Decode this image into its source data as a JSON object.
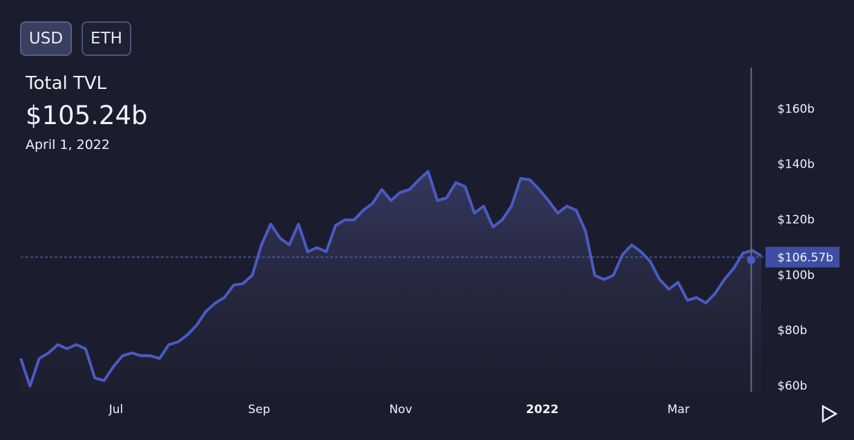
{
  "buttons": [
    "USD",
    "ETH"
  ],
  "header": {
    "title": "Total TVL",
    "value": "$105.24b",
    "date": "April 1, 2022"
  },
  "chart_data": {
    "type": "line",
    "color": "#4a5bc2",
    "values": [
      70,
      60,
      70,
      72,
      75,
      73.5,
      75,
      73.5,
      63,
      62,
      67,
      71,
      72,
      71,
      71,
      70,
      75,
      76,
      78.5,
      82,
      87,
      90,
      92,
      96.5,
      97,
      100,
      111,
      118.5,
      113.5,
      111,
      118.5,
      108.5,
      110,
      108.5,
      118,
      120,
      120,
      123.5,
      126,
      131,
      127,
      130,
      131,
      134.5,
      137.5,
      127,
      128,
      133.5,
      132,
      122.5,
      125,
      117.5,
      120,
      125,
      135,
      134.5,
      131,
      127,
      122.5,
      125,
      123.5,
      116,
      100,
      98.5,
      100,
      107.5,
      111,
      108.5,
      105,
      98.5,
      95,
      97.5,
      91,
      92,
      90,
      93.5,
      98.5,
      102.5,
      108,
      109,
      107
    ],
    "xlim": [
      0,
      80
    ],
    "xticks": [
      {
        "value": 10.3,
        "label": "Jul"
      },
      {
        "value": 25.75,
        "label": "Sep"
      },
      {
        "value": 41.04,
        "label": "Nov"
      },
      {
        "value": 56.34,
        "label": "2022"
      },
      {
        "value": 71.04,
        "label": "Mar"
      }
    ],
    "ylim": [
      58,
      175
    ],
    "yticks": [
      {
        "value": 60,
        "label": "$60b"
      },
      {
        "value": 80,
        "label": "$80b"
      },
      {
        "value": 100,
        "label": "$100b"
      },
      {
        "value": 120,
        "label": "$120b"
      },
      {
        "value": 140,
        "label": "$140b"
      },
      {
        "value": 160,
        "label": "$160b"
      }
    ],
    "hover": {
      "x": 78.9,
      "value": 106.57,
      "label": "$106.57b"
    }
  }
}
